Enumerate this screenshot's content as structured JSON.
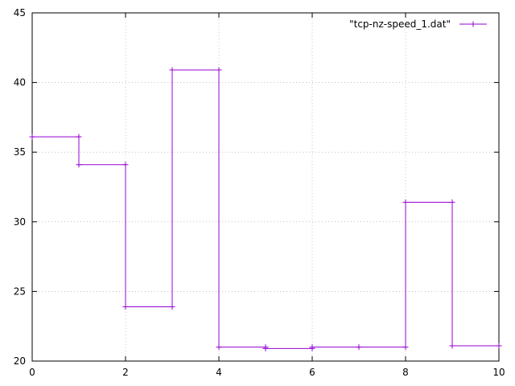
{
  "chart_data": {
    "type": "line",
    "title": "",
    "xlabel": "",
    "ylabel": "",
    "xlim": [
      0,
      10
    ],
    "ylim": [
      20,
      45
    ],
    "x_ticks": [
      0,
      2,
      4,
      6,
      8,
      10
    ],
    "y_ticks": [
      20,
      25,
      30,
      35,
      40,
      45
    ],
    "grid": true,
    "legend_position": "top-right",
    "marker": "plus",
    "line_style": "steps",
    "series": [
      {
        "name": "\"tcp-nz-speed_1.dat\"",
        "color": "#9400d3",
        "points": [
          {
            "x": 0,
            "y": 36.1
          },
          {
            "x": 1,
            "y": 36.1
          },
          {
            "x": 1,
            "y": 34.1
          },
          {
            "x": 2,
            "y": 34.1
          },
          {
            "x": 2,
            "y": 23.9
          },
          {
            "x": 3,
            "y": 23.9
          },
          {
            "x": 3,
            "y": 40.9
          },
          {
            "x": 4,
            "y": 40.9
          },
          {
            "x": 4,
            "y": 21.0
          },
          {
            "x": 5,
            "y": 21.0
          },
          {
            "x": 5,
            "y": 20.9
          },
          {
            "x": 6,
            "y": 20.9
          },
          {
            "x": 6,
            "y": 21.0
          },
          {
            "x": 7,
            "y": 21.0
          },
          {
            "x": 8,
            "y": 21.0
          },
          {
            "x": 8,
            "y": 31.4
          },
          {
            "x": 9,
            "y": 31.4
          },
          {
            "x": 9,
            "y": 21.1
          },
          {
            "x": 10,
            "y": 21.1
          }
        ]
      }
    ]
  }
}
